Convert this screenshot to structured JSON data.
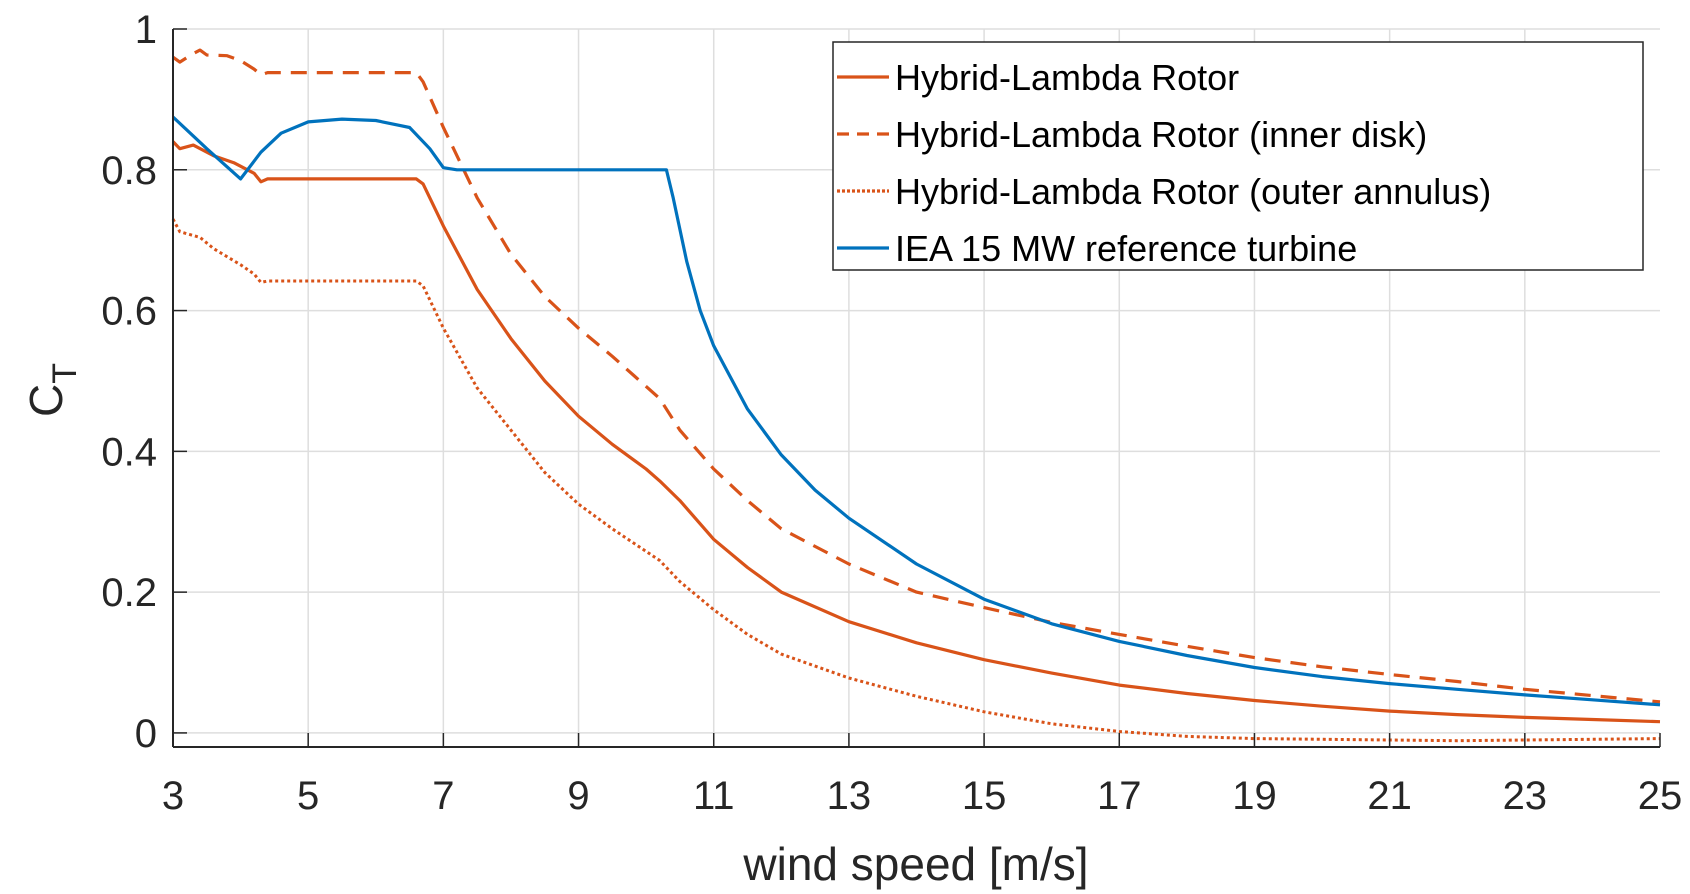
{
  "chart_data": {
    "type": "line",
    "title": "",
    "xlabel": "wind speed [m/s]",
    "ylabel": "C",
    "ylabel_subscript": "T",
    "xlim": [
      3,
      25
    ],
    "ylim": [
      -0.02,
      1
    ],
    "xticks": [
      3,
      5,
      7,
      9,
      11,
      13,
      15,
      17,
      19,
      21,
      23,
      25
    ],
    "yticks": [
      0,
      0.2,
      0.4,
      0.6,
      0.8,
      1
    ],
    "ytick_labels": [
      "0",
      "0.2",
      "0.4",
      "0.6",
      "0.8",
      "1"
    ],
    "xtick_labels": [
      "3",
      "5",
      "7",
      "9",
      "11",
      "13",
      "15",
      "17",
      "19",
      "21",
      "23",
      "25"
    ],
    "grid": true,
    "legend_position": "top-right",
    "series": [
      {
        "name": "Hybrid-Lambda Rotor",
        "color": "#D95319",
        "style": "solid",
        "x": [
          3,
          3.1,
          3.3,
          3.6,
          3.9,
          4.2,
          4.3,
          4.4,
          5,
          6,
          6.6,
          6.7,
          7,
          7.5,
          8,
          8.5,
          9,
          9.5,
          10,
          10.2,
          10.5,
          11,
          11.5,
          12,
          13,
          14,
          15,
          16,
          17,
          18,
          19,
          20,
          21,
          22,
          23,
          24,
          25
        ],
        "values": [
          0.84,
          0.83,
          0.835,
          0.82,
          0.81,
          0.795,
          0.783,
          0.787,
          0.787,
          0.787,
          0.787,
          0.78,
          0.72,
          0.63,
          0.56,
          0.5,
          0.45,
          0.41,
          0.375,
          0.358,
          0.33,
          0.275,
          0.235,
          0.2,
          0.158,
          0.128,
          0.104,
          0.085,
          0.068,
          0.056,
          0.046,
          0.038,
          0.031,
          0.026,
          0.022,
          0.019,
          0.016
        ]
      },
      {
        "name": "Hybrid-Lambda Rotor (inner disk)",
        "color": "#D95319",
        "style": "dashed",
        "x": [
          3,
          3.1,
          3.3,
          3.4,
          3.5,
          3.8,
          4.0,
          4.2,
          4.3,
          4.4,
          5,
          6,
          6.6,
          6.7,
          7,
          7.5,
          8,
          8.5,
          9,
          9.5,
          10.2,
          10.5,
          11,
          11.5,
          12,
          13,
          14,
          15,
          16,
          17,
          18,
          19,
          20,
          21,
          22,
          23,
          24,
          25
        ],
        "values": [
          0.96,
          0.953,
          0.965,
          0.97,
          0.963,
          0.962,
          0.955,
          0.943,
          0.935,
          0.938,
          0.938,
          0.938,
          0.938,
          0.925,
          0.86,
          0.76,
          0.68,
          0.62,
          0.575,
          0.535,
          0.475,
          0.43,
          0.375,
          0.33,
          0.29,
          0.24,
          0.2,
          0.178,
          0.157,
          0.14,
          0.123,
          0.107,
          0.094,
          0.083,
          0.073,
          0.062,
          0.053,
          0.044
        ]
      },
      {
        "name": "Hybrid-Lambda Rotor (outer annulus)",
        "color": "#D95319",
        "style": "dotted",
        "x": [
          3,
          3.1,
          3.4,
          3.6,
          4.0,
          4.2,
          4.3,
          4.4,
          5,
          6,
          6.6,
          6.7,
          7,
          7.5,
          8,
          8.5,
          9,
          9.5,
          10.2,
          10.5,
          11,
          11.5,
          12,
          13,
          14,
          15,
          16,
          17,
          18,
          19,
          20,
          21,
          22,
          23,
          24,
          25
        ],
        "values": [
          0.73,
          0.712,
          0.704,
          0.688,
          0.665,
          0.652,
          0.64,
          0.642,
          0.642,
          0.642,
          0.642,
          0.635,
          0.575,
          0.49,
          0.43,
          0.37,
          0.325,
          0.29,
          0.245,
          0.215,
          0.175,
          0.14,
          0.112,
          0.078,
          0.052,
          0.03,
          0.013,
          0.002,
          -0.005,
          -0.008,
          -0.009,
          -0.01,
          -0.011,
          -0.01,
          -0.009,
          -0.008
        ]
      },
      {
        "name": "IEA 15 MW reference turbine",
        "color": "#0072BD",
        "style": "solid",
        "x": [
          3,
          3.5,
          4.0,
          4.3,
          4.6,
          5.0,
          5.5,
          6.0,
          6.5,
          6.8,
          7.0,
          7.2,
          8,
          9,
          10,
          10.3,
          10.4,
          10.6,
          10.8,
          11,
          11.5,
          12,
          12.5,
          13,
          14,
          15,
          16,
          17,
          18,
          19,
          20,
          21,
          22,
          23,
          24,
          25
        ],
        "values": [
          0.875,
          0.83,
          0.787,
          0.825,
          0.852,
          0.868,
          0.872,
          0.87,
          0.86,
          0.83,
          0.803,
          0.8,
          0.8,
          0.8,
          0.8,
          0.8,
          0.76,
          0.67,
          0.6,
          0.55,
          0.46,
          0.395,
          0.345,
          0.305,
          0.24,
          0.19,
          0.155,
          0.13,
          0.11,
          0.093,
          0.08,
          0.07,
          0.062,
          0.054,
          0.047,
          0.04
        ]
      }
    ]
  }
}
